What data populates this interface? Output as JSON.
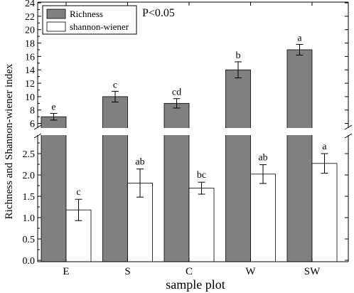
{
  "chart_data": {
    "type": "bar",
    "title": "",
    "xlabel": "sample plot",
    "ylabel": "Richness and Shannon-wiener index",
    "annotation": "P<0.05",
    "categories": [
      "E",
      "S",
      "C",
      "W",
      "SW"
    ],
    "axis_break": true,
    "ylim_upper": [
      5,
      24
    ],
    "ylim_lower": [
      0,
      2.9
    ],
    "yticks_upper": [
      "6",
      "8",
      "10",
      "12",
      "14",
      "16",
      "18",
      "20",
      "22",
      "24"
    ],
    "yticks_lower": [
      "0.0",
      "0.5",
      "1.0",
      "1.5",
      "2.0",
      "2.5"
    ],
    "legend_position": "top-left",
    "series": [
      {
        "name": "Richness",
        "color": "#808080",
        "values": [
          7.0,
          10.0,
          9.0,
          14.0,
          17.0
        ],
        "errors": [
          0.5,
          0.8,
          0.7,
          1.2,
          0.8
        ],
        "letters": [
          "e",
          "c",
          "cd",
          "b",
          "a"
        ]
      },
      {
        "name": "shannon-wiener",
        "color": "#ffffff",
        "values": [
          1.18,
          1.81,
          1.69,
          2.02,
          2.27
        ],
        "errors": [
          0.25,
          0.33,
          0.14,
          0.22,
          0.23
        ],
        "letters": [
          "c",
          "ab",
          "bc",
          "ab",
          "a"
        ]
      }
    ]
  }
}
